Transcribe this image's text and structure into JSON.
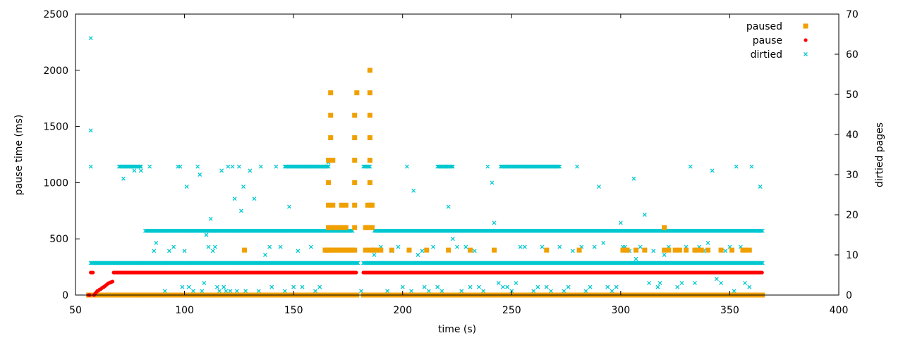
{
  "chart_data": {
    "type": "scatter",
    "xlabel": "time (s)",
    "ylabel": "pause time (ms)",
    "y2label": "dirtied pages",
    "xlim": [
      50,
      400
    ],
    "ylim": [
      0,
      2500
    ],
    "y2lim": [
      0,
      70
    ],
    "xticks": [
      50,
      100,
      150,
      200,
      250,
      300,
      350,
      400
    ],
    "yticks": [
      0,
      500,
      1000,
      1500,
      2000,
      2500
    ],
    "y2ticks": [
      0,
      10,
      20,
      30,
      40,
      50,
      60,
      70
    ],
    "grid": false,
    "legend_position": "top-right",
    "series": [
      {
        "name": "paused",
        "marker": "square",
        "color": "#f0a000",
        "axis": "left",
        "runs": [
          {
            "x_start": 56,
            "x_end": 179,
            "step": 0.5,
            "y": 0
          },
          {
            "x_start": 182,
            "x_end": 365,
            "step": 0.5,
            "y": 0
          }
        ],
        "points": [
          [
            127.5,
            400
          ],
          [
            164.5,
            400
          ],
          [
            165,
            400
          ],
          [
            165.5,
            400
          ],
          [
            166,
            400
          ],
          [
            167,
            400
          ],
          [
            168,
            400
          ],
          [
            169,
            400
          ],
          [
            170,
            400
          ],
          [
            171,
            400
          ],
          [
            172,
            400
          ],
          [
            173,
            400
          ],
          [
            174,
            400
          ],
          [
            175,
            400
          ],
          [
            176,
            400
          ],
          [
            177,
            400
          ],
          [
            178,
            400
          ],
          [
            166,
            600
          ],
          [
            166,
            800
          ],
          [
            166,
            1000
          ],
          [
            166,
            1200
          ],
          [
            167,
            1400
          ],
          [
            167,
            1600
          ],
          [
            167,
            1800
          ],
          [
            168,
            600
          ],
          [
            168,
            800
          ],
          [
            168,
            1200
          ],
          [
            170,
            600
          ],
          [
            172,
            600
          ],
          [
            172,
            800
          ],
          [
            174,
            600
          ],
          [
            174,
            800
          ],
          [
            178,
            600
          ],
          [
            178,
            800
          ],
          [
            178,
            1000
          ],
          [
            178,
            1200
          ],
          [
            178,
            1400
          ],
          [
            178,
            1600
          ],
          [
            179,
            1800
          ],
          [
            183,
            400
          ],
          [
            183,
            600
          ],
          [
            184,
            600
          ],
          [
            184,
            800
          ],
          [
            185,
            400
          ],
          [
            185,
            800
          ],
          [
            185,
            1000
          ],
          [
            185,
            1200
          ],
          [
            185,
            1400
          ],
          [
            185,
            1600
          ],
          [
            185,
            1800
          ],
          [
            185,
            2000
          ],
          [
            186,
            400
          ],
          [
            186,
            600
          ],
          [
            186,
            800
          ],
          [
            187,
            400
          ],
          [
            188,
            400
          ],
          [
            190,
            400
          ],
          [
            195,
            400
          ],
          [
            203,
            400
          ],
          [
            211,
            400
          ],
          [
            221,
            400
          ],
          [
            231,
            400
          ],
          [
            242,
            400
          ],
          [
            266,
            400
          ],
          [
            281,
            400
          ],
          [
            301,
            400
          ],
          [
            302,
            400
          ],
          [
            303,
            400
          ],
          [
            307,
            400
          ],
          [
            311,
            400
          ],
          [
            320,
            600
          ],
          [
            320,
            400
          ],
          [
            322,
            400
          ],
          [
            325,
            400
          ],
          [
            327,
            400
          ],
          [
            330,
            400
          ],
          [
            334,
            400
          ],
          [
            335,
            400
          ],
          [
            337,
            400
          ],
          [
            340,
            400
          ],
          [
            346,
            400
          ],
          [
            351,
            400
          ],
          [
            356,
            400
          ],
          [
            357,
            400
          ],
          [
            359,
            400
          ]
        ]
      },
      {
        "name": "pause",
        "marker": "dot",
        "color": "#ff0000",
        "axis": "left",
        "runs": [
          {
            "x_start": 67.5,
            "x_end": 179,
            "step": 0.4,
            "y": 200
          },
          {
            "x_start": 182,
            "x_end": 365,
            "step": 0.4,
            "y": 200
          }
        ],
        "points": [
          [
            56,
            0
          ],
          [
            56.5,
            0
          ],
          [
            57,
            200
          ],
          [
            57.5,
            200
          ],
          [
            58,
            200
          ],
          [
            58.5,
            0
          ],
          [
            59,
            12
          ],
          [
            59.5,
            24
          ],
          [
            60,
            36
          ],
          [
            60.5,
            40
          ],
          [
            61,
            48
          ],
          [
            61.5,
            52
          ],
          [
            62,
            60
          ],
          [
            62.5,
            68
          ],
          [
            63,
            72
          ],
          [
            63.5,
            80
          ],
          [
            64,
            88
          ],
          [
            64.5,
            96
          ],
          [
            65,
            104
          ],
          [
            65.5,
            108
          ],
          [
            66,
            112
          ],
          [
            66.5,
            116
          ],
          [
            67,
            120
          ]
        ]
      },
      {
        "name": "dirtied",
        "marker": "x",
        "color": "#00c8d0",
        "axis": "right",
        "runs": [
          {
            "x_start": 57,
            "x_end": 365,
            "step": 0.5,
            "y": 8,
            "gaps": [
              [
                179.5,
                182
              ]
            ]
          },
          {
            "x_start": 82,
            "x_end": 177,
            "step": 0.5,
            "y": 16
          },
          {
            "x_start": 187,
            "x_end": 365,
            "step": 0.5,
            "y": 16
          },
          {
            "x_start": 70,
            "x_end": 80,
            "step": 0.5,
            "y": 32
          },
          {
            "x_start": 146,
            "x_end": 166,
            "step": 0.5,
            "y": 32
          },
          {
            "x_start": 182,
            "x_end": 185,
            "step": 0.5,
            "y": 32
          },
          {
            "x_start": 216,
            "x_end": 223,
            "step": 0.5,
            "y": 32
          },
          {
            "x_start": 245,
            "x_end": 272,
            "step": 0.5,
            "y": 32
          }
        ],
        "points": [
          [
            57,
            64
          ],
          [
            57,
            41
          ],
          [
            57,
            32
          ],
          [
            72,
            29
          ],
          [
            77,
            31
          ],
          [
            80,
            31
          ],
          [
            84,
            32
          ],
          [
            86,
            11
          ],
          [
            87,
            13
          ],
          [
            91,
            1
          ],
          [
            93,
            11
          ],
          [
            95,
            12
          ],
          [
            97,
            32
          ],
          [
            98,
            32
          ],
          [
            99,
            2
          ],
          [
            100,
            11
          ],
          [
            101,
            27
          ],
          [
            102,
            2
          ],
          [
            104,
            1
          ],
          [
            106,
            32
          ],
          [
            107,
            30
          ],
          [
            108,
            1
          ],
          [
            109,
            3
          ],
          [
            110,
            15
          ],
          [
            111,
            12
          ],
          [
            112,
            19
          ],
          [
            113,
            11
          ],
          [
            114,
            12
          ],
          [
            115,
            2
          ],
          [
            116,
            1
          ],
          [
            117,
            31
          ],
          [
            118,
            2
          ],
          [
            119,
            1
          ],
          [
            120,
            32
          ],
          [
            121,
            1
          ],
          [
            122,
            32
          ],
          [
            123,
            24
          ],
          [
            124,
            1
          ],
          [
            125,
            32
          ],
          [
            126,
            21
          ],
          [
            127,
            27
          ],
          [
            128,
            1
          ],
          [
            130,
            31
          ],
          [
            132,
            24
          ],
          [
            134,
            1
          ],
          [
            135,
            32
          ],
          [
            137,
            10
          ],
          [
            139,
            12
          ],
          [
            140,
            2
          ],
          [
            142,
            32
          ],
          [
            144,
            12
          ],
          [
            146,
            1
          ],
          [
            148,
            22
          ],
          [
            150,
            2
          ],
          [
            152,
            11
          ],
          [
            154,
            2
          ],
          [
            156,
            32
          ],
          [
            158,
            12
          ],
          [
            160,
            1
          ],
          [
            162,
            2
          ],
          [
            164,
            32
          ],
          [
            166,
            33
          ],
          [
            181,
            1
          ],
          [
            187,
            10
          ],
          [
            190,
            12
          ],
          [
            193,
            1
          ],
          [
            195,
            11
          ],
          [
            198,
            12
          ],
          [
            200,
            2
          ],
          [
            202,
            32
          ],
          [
            204,
            1
          ],
          [
            205,
            26
          ],
          [
            207,
            10
          ],
          [
            209,
            11
          ],
          [
            210,
            2
          ],
          [
            212,
            1
          ],
          [
            214,
            12
          ],
          [
            216,
            2
          ],
          [
            218,
            1
          ],
          [
            220,
            32
          ],
          [
            221,
            22
          ],
          [
            223,
            14
          ],
          [
            225,
            12
          ],
          [
            227,
            1
          ],
          [
            229,
            12
          ],
          [
            231,
            2
          ],
          [
            233,
            11
          ],
          [
            235,
            2
          ],
          [
            237,
            1
          ],
          [
            239,
            32
          ],
          [
            241,
            28
          ],
          [
            242,
            18
          ],
          [
            244,
            3
          ],
          [
            246,
            2
          ],
          [
            248,
            2
          ],
          [
            250,
            1
          ],
          [
            252,
            3
          ],
          [
            254,
            12
          ],
          [
            256,
            12
          ],
          [
            258,
            32
          ],
          [
            260,
            1
          ],
          [
            262,
            2
          ],
          [
            264,
            12
          ],
          [
            266,
            2
          ],
          [
            268,
            1
          ],
          [
            270,
            32
          ],
          [
            272,
            12
          ],
          [
            274,
            1
          ],
          [
            276,
            2
          ],
          [
            278,
            11
          ],
          [
            280,
            32
          ],
          [
            282,
            12
          ],
          [
            284,
            1
          ],
          [
            286,
            2
          ],
          [
            288,
            12
          ],
          [
            290,
            27
          ],
          [
            292,
            13
          ],
          [
            294,
            2
          ],
          [
            296,
            1
          ],
          [
            298,
            2
          ],
          [
            300,
            18
          ],
          [
            301,
            12
          ],
          [
            302,
            12
          ],
          [
            304,
            11
          ],
          [
            306,
            29
          ],
          [
            307,
            9
          ],
          [
            309,
            12
          ],
          [
            311,
            20
          ],
          [
            313,
            3
          ],
          [
            315,
            11
          ],
          [
            317,
            2
          ],
          [
            318,
            3
          ],
          [
            320,
            10
          ],
          [
            322,
            12
          ],
          [
            324,
            8
          ],
          [
            326,
            2
          ],
          [
            328,
            3
          ],
          [
            330,
            12
          ],
          [
            332,
            32
          ],
          [
            334,
            3
          ],
          [
            336,
            12
          ],
          [
            338,
            11
          ],
          [
            340,
            13
          ],
          [
            342,
            31
          ],
          [
            344,
            4
          ],
          [
            346,
            3
          ],
          [
            348,
            11
          ],
          [
            350,
            12
          ],
          [
            352,
            1
          ],
          [
            353,
            32
          ],
          [
            355,
            12
          ],
          [
            357,
            3
          ],
          [
            359,
            2
          ],
          [
            360,
            32
          ],
          [
            363,
            16
          ],
          [
            364,
            27
          ]
        ]
      }
    ]
  }
}
